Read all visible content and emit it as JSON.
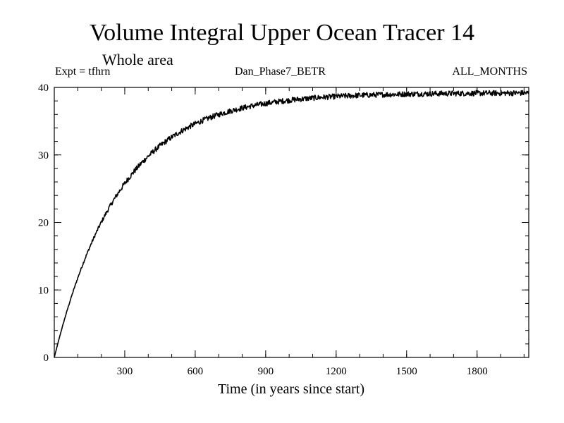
{
  "chart_data": {
    "type": "line",
    "title": "Volume Integral Upper Ocean Tracer 14",
    "subtitle": "Whole area",
    "header_left": "Expt = tfhrn",
    "header_center": "Dan_Phase7_BETR",
    "header_right": "ALL_MONTHS",
    "xlabel": "Time (in years since start)",
    "ylabel": "",
    "xlim": [
      0,
      2020
    ],
    "ylim": [
      0,
      40
    ],
    "xticks": [
      300,
      600,
      900,
      1200,
      1500,
      1800
    ],
    "yticks": [
      0,
      10,
      20,
      30,
      40
    ],
    "x_minor_step": 100,
    "y_minor_step": 2,
    "grid": false,
    "line_color": "#000000",
    "series": [
      {
        "name": "Tracer 14",
        "model": "saturating_exponential",
        "asymptote": 39.2,
        "timescale_years": 280,
        "noise_amplitude": 0.4,
        "x_start": 0,
        "x_end": 2020,
        "x_step": 2,
        "sample_points": [
          {
            "x": 0,
            "y": 0
          },
          {
            "x": 100,
            "y": 12
          },
          {
            "x": 200,
            "y": 20.5
          },
          {
            "x": 300,
            "y": 26.5
          },
          {
            "x": 400,
            "y": 30.5
          },
          {
            "x": 500,
            "y": 33.5
          },
          {
            "x": 600,
            "y": 35.3
          },
          {
            "x": 700,
            "y": 36.6
          },
          {
            "x": 800,
            "y": 37.5
          },
          {
            "x": 900,
            "y": 38.0
          },
          {
            "x": 1000,
            "y": 38.4
          },
          {
            "x": 1200,
            "y": 38.8
          },
          {
            "x": 1500,
            "y": 39.0
          },
          {
            "x": 1800,
            "y": 39.2
          },
          {
            "x": 2020,
            "y": 39.2
          }
        ]
      }
    ]
  }
}
